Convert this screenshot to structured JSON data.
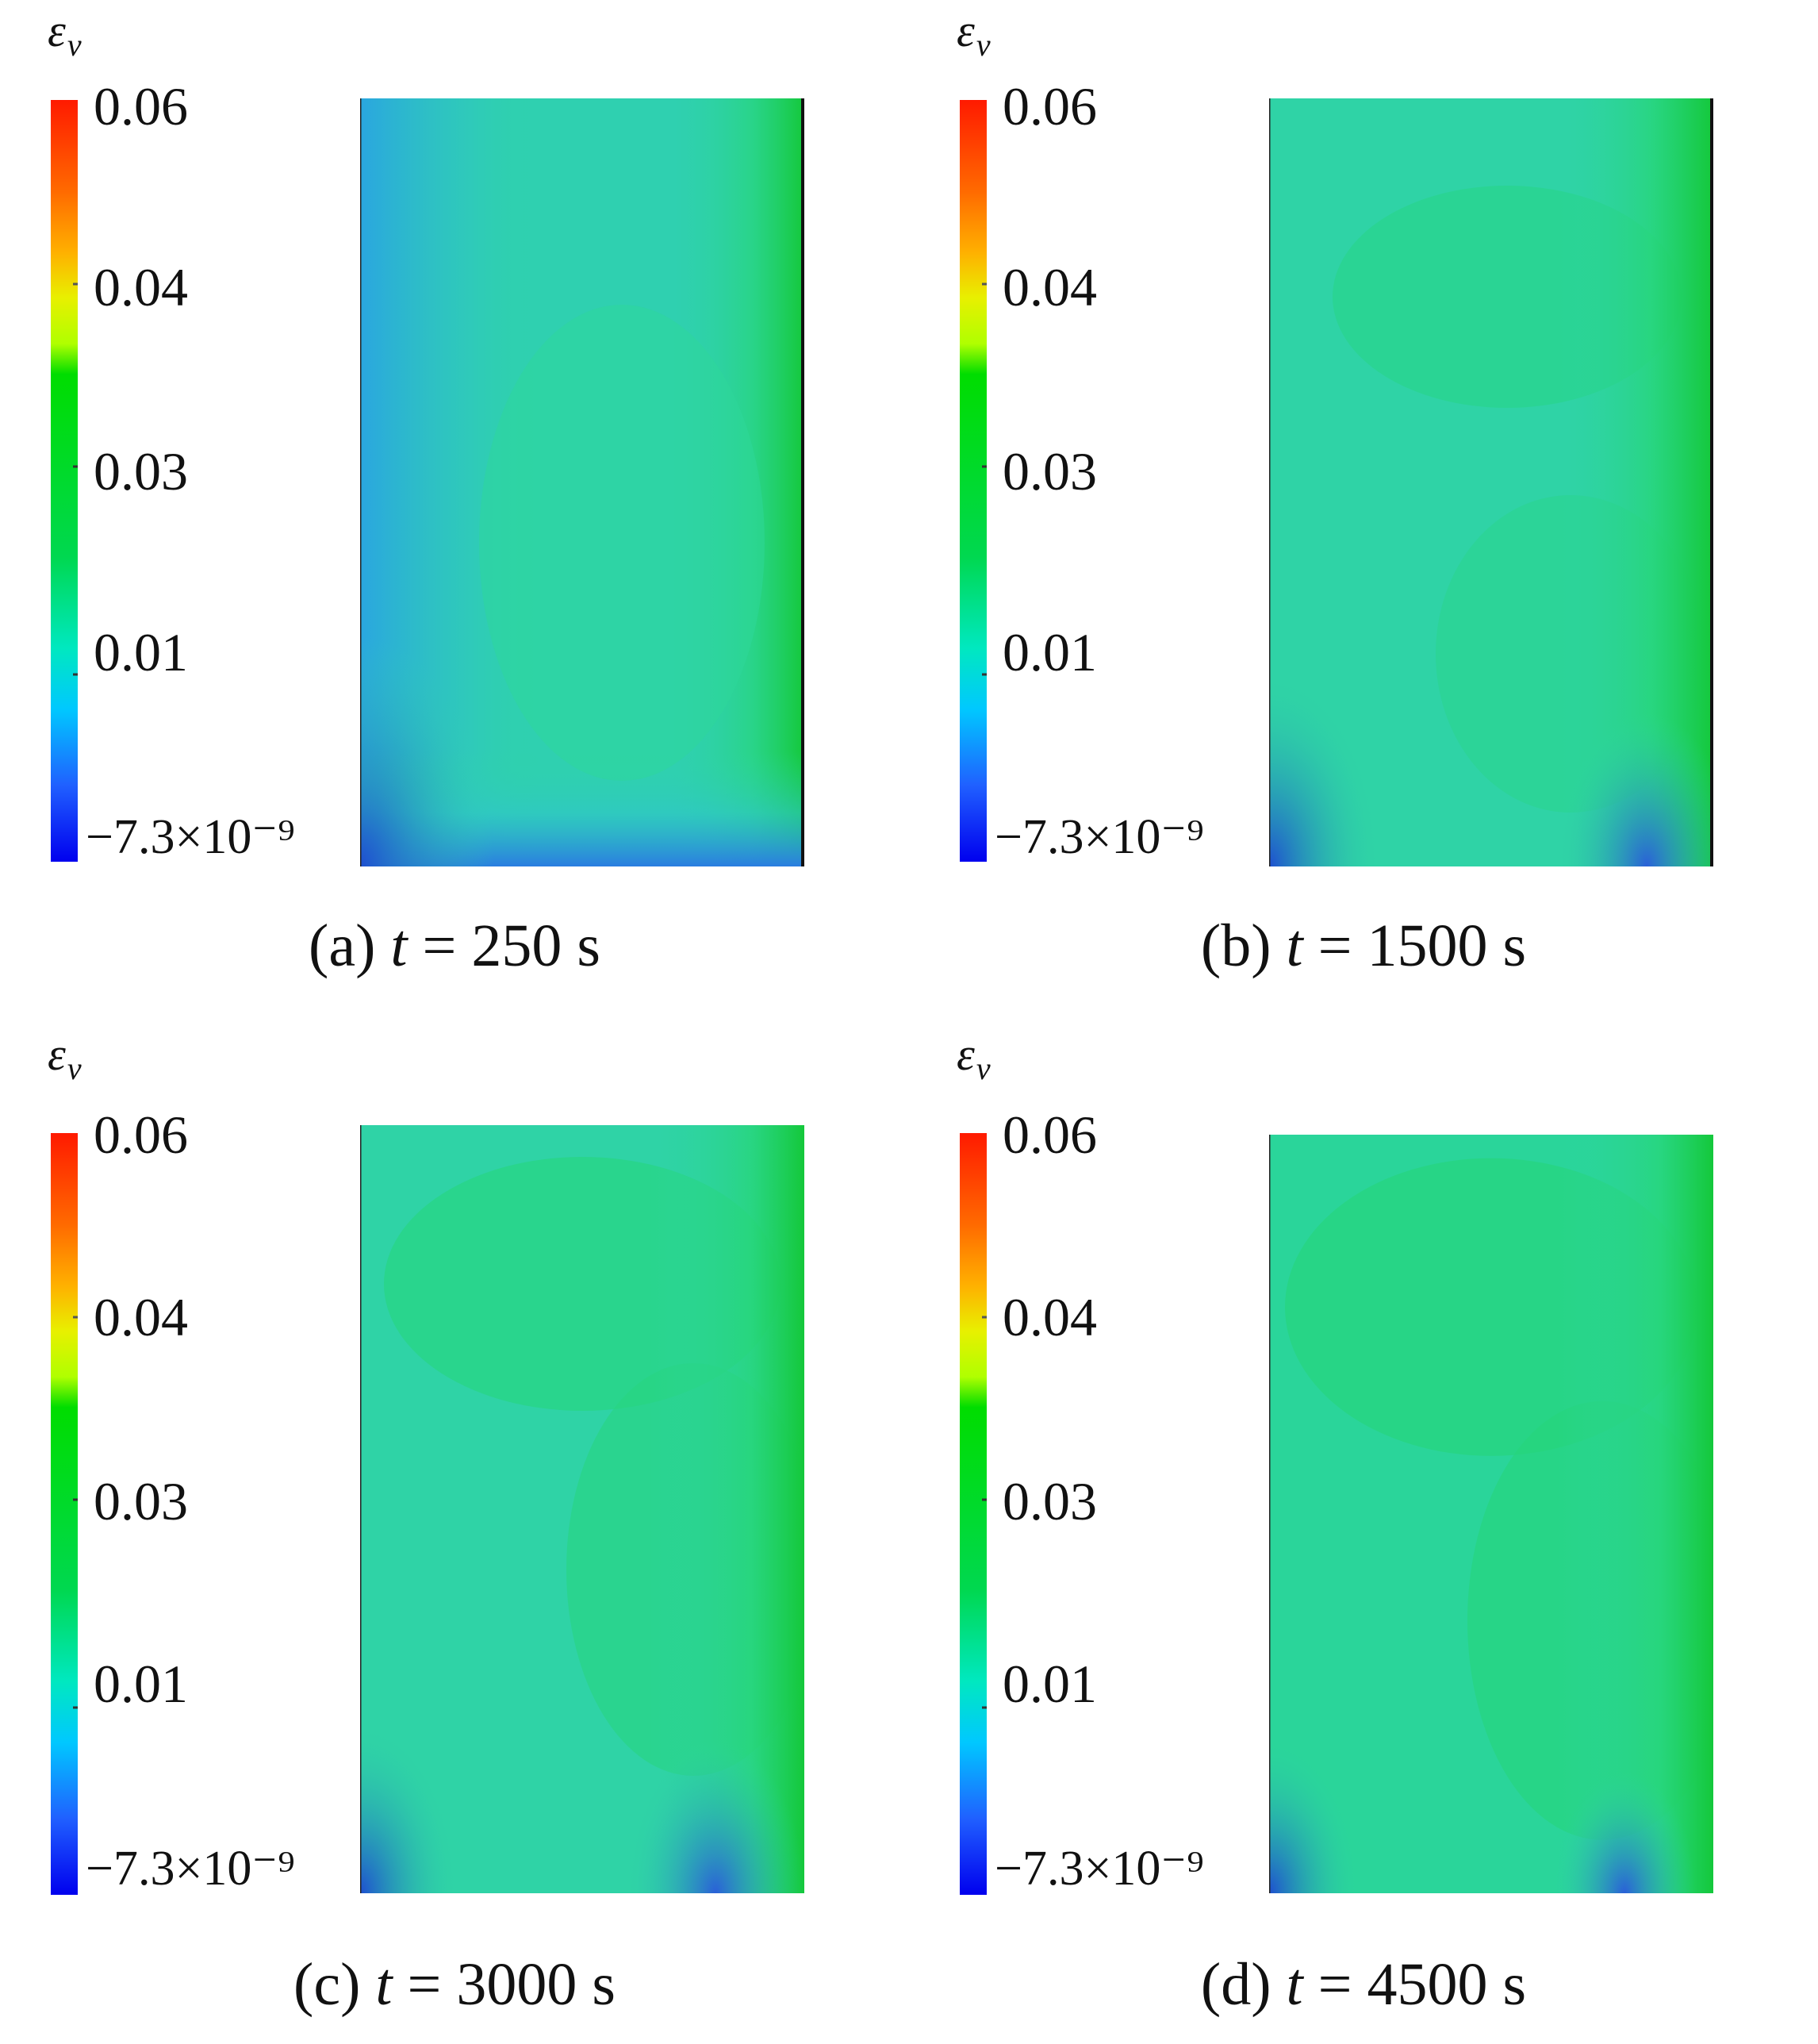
{
  "symbol": {
    "base": "ε",
    "sub": "v"
  },
  "colorbar": {
    "tick_labels": [
      "0.06",
      "0.04",
      "0.03",
      "0.01",
      "−7.3×10⁻⁹"
    ],
    "colors": [
      "#ff1a00",
      "#ff6a00",
      "#ffb000",
      "#e8f000",
      "#b0ff00",
      "#00dd00",
      "#00d850",
      "#00e8c0",
      "#00c8ff",
      "#2060ff",
      "#0000ee"
    ]
  },
  "panels": [
    {
      "letter": "(a)",
      "var": "t",
      "equals": "=",
      "value": "250 s"
    },
    {
      "letter": "(b)",
      "var": "t",
      "equals": "=",
      "value": "1500 s"
    },
    {
      "letter": "(c)",
      "var": "t",
      "equals": "=",
      "value": "3000 s"
    },
    {
      "letter": "(d)",
      "var": "t",
      "equals": "=",
      "value": "4500 s"
    }
  ],
  "field_colors": {
    "base": "#2fd3a6",
    "greener": "#27d67a",
    "edge_blue": "#2a7de0",
    "corner_blue": "#1e4fd0"
  }
}
